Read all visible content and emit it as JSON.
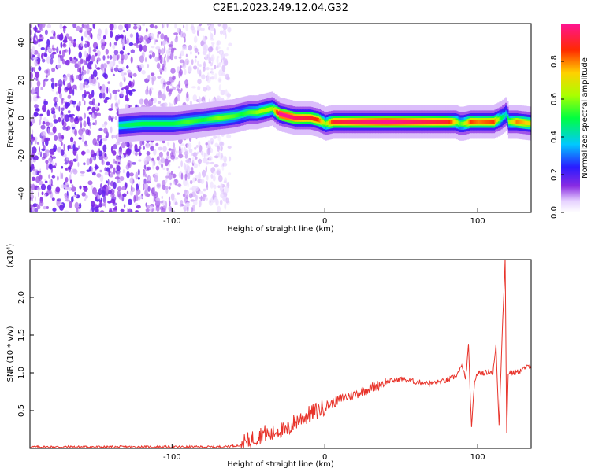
{
  "title": "C2E1.2023.249.12.04.G32",
  "spectrogram": {
    "type": "heatmap",
    "xlabel": "Height of straight line (km)",
    "ylabel": "Frequency (Hz)",
    "xlim": [
      -193,
      135
    ],
    "ylim": [
      -50,
      50
    ],
    "xticks": [
      -100,
      0,
      100
    ],
    "yticks": [
      -40,
      -20,
      0,
      20,
      40
    ],
    "colorbar": {
      "label": "Normalized spectral amplitude",
      "range": [
        0,
        1
      ],
      "ticks": [
        "0.0",
        "0.2",
        "0.4",
        "0.6",
        "0.8"
      ]
    },
    "ridge": {
      "x": [
        -135,
        -120,
        -100,
        -90,
        -80,
        -70,
        -60,
        -55,
        -50,
        -45,
        -40,
        -35,
        -30,
        -25,
        -20,
        -10,
        -5,
        0,
        5,
        20,
        40,
        60,
        80,
        85,
        88,
        90,
        95,
        100,
        110,
        115,
        118,
        120,
        125,
        135
      ],
      "y": [
        -4,
        -3,
        -3,
        -2,
        -1,
        0,
        1,
        2,
        3,
        3,
        4,
        5,
        2,
        1,
        0,
        0,
        -1,
        -3,
        -2,
        -2,
        -2,
        -2,
        -2,
        -2,
        -3,
        -3,
        -2,
        -2,
        -2,
        0,
        2,
        -2,
        -2,
        -3
      ],
      "amplitude": [
        0.45,
        0.5,
        0.5,
        0.55,
        0.5,
        0.6,
        0.55,
        0.5,
        0.55,
        0.6,
        0.65,
        0.6,
        1.0,
        1.0,
        0.95,
        0.9,
        0.85,
        0.6,
        0.9,
        0.95,
        1.0,
        0.95,
        0.9,
        0.7,
        0.55,
        0.6,
        0.85,
        0.8,
        0.85,
        0.5,
        0.4,
        0.6,
        0.8,
        0.7
      ]
    },
    "noise_extent_x": [
      -193,
      -62
    ]
  },
  "snr": {
    "type": "line",
    "xlabel": "Height of straight line (km)",
    "ylabel": "SNR (10 * v/v)",
    "yscale_label": "(x10⁴)",
    "xlim": [
      -193,
      135
    ],
    "ylim": [
      0,
      2.5
    ],
    "xticks": [
      -100,
      0,
      100
    ],
    "yticks": [
      "0.5",
      "1.0",
      "1.5",
      "2.0"
    ],
    "ytick_values": [
      0.5,
      1.0,
      1.5,
      2.0
    ],
    "color": "#e8332a",
    "series": {
      "x": [
        -193,
        -150,
        -100,
        -70,
        -55,
        -50,
        -45,
        -40,
        -35,
        -30,
        -25,
        -20,
        -15,
        -10,
        -5,
        0,
        5,
        10,
        20,
        30,
        40,
        50,
        60,
        70,
        80,
        85,
        88,
        90,
        92,
        94,
        96,
        98,
        100,
        105,
        108,
        110,
        112,
        114,
        116,
        118,
        119,
        120,
        122,
        125,
        130,
        135
      ],
      "y": [
        0.02,
        0.02,
        0.02,
        0.02,
        0.04,
        0.1,
        0.15,
        0.2,
        0.18,
        0.25,
        0.22,
        0.35,
        0.4,
        0.45,
        0.5,
        0.55,
        0.6,
        0.65,
        0.72,
        0.8,
        0.88,
        0.92,
        0.88,
        0.86,
        0.9,
        0.95,
        1.02,
        1.1,
        0.9,
        1.35,
        0.25,
        0.9,
        1.0,
        1.0,
        1.02,
        1.0,
        1.35,
        0.3,
        1.5,
        2.5,
        0.2,
        1.0,
        1.0,
        1.0,
        1.05,
        1.1
      ]
    }
  }
}
